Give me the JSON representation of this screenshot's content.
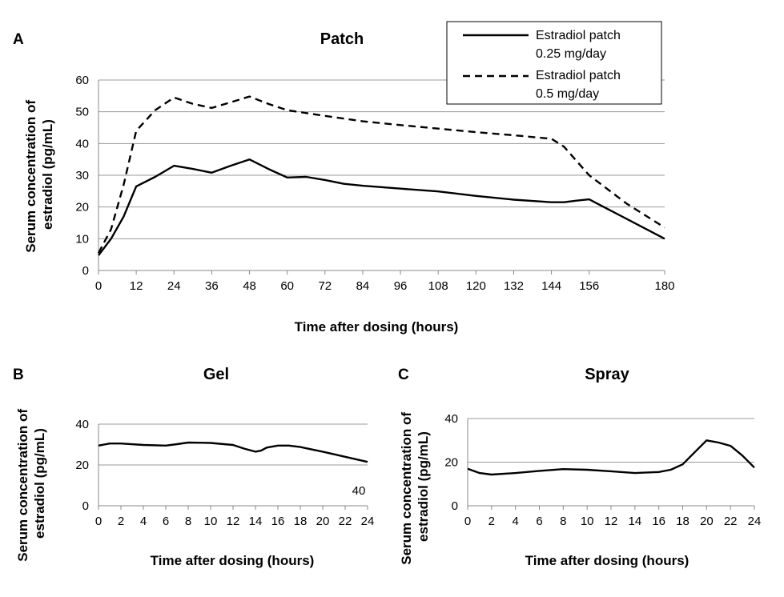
{
  "chart_data": [
    {
      "panel": "A",
      "type": "line",
      "title": "Patch",
      "xlabel": "Time after dosing (hours)",
      "ylabel": "Serum concentration of estradiol (pg/mL)",
      "xlim": [
        0,
        180
      ],
      "ylim": [
        0,
        60
      ],
      "x_ticks": [
        0,
        12,
        24,
        36,
        48,
        60,
        72,
        84,
        96,
        108,
        120,
        132,
        144,
        156,
        180
      ],
      "y_ticks": [
        0,
        10,
        20,
        30,
        40,
        50,
        60
      ],
      "grid": "horizontal",
      "legend": "top-right",
      "series": [
        {
          "name": "Estradiol patch 0.25 mg/day",
          "style": "solid",
          "x": [
            0,
            4,
            8,
            12,
            18,
            24,
            30,
            36,
            42,
            48,
            54,
            60,
            66,
            72,
            78,
            84,
            96,
            108,
            120,
            132,
            144,
            148,
            152,
            156,
            180
          ],
          "y": [
            4.8,
            10,
            17,
            26.5,
            29.5,
            33,
            32,
            30.8,
            33,
            35,
            32,
            29.3,
            29.5,
            28.5,
            27.3,
            26.7,
            25.8,
            24.9,
            23.5,
            22.3,
            21.5,
            21.5,
            22,
            22.4,
            10
          ]
        },
        {
          "name": "Estradiol patch 0.5 mg/day",
          "style": "dashed",
          "x": [
            0,
            4,
            8,
            12,
            18,
            24,
            30,
            36,
            42,
            48,
            54,
            60,
            72,
            84,
            96,
            108,
            120,
            132,
            144,
            148,
            156,
            168,
            180
          ],
          "y": [
            5.5,
            13,
            27,
            44,
            50.5,
            54.5,
            52.5,
            51.2,
            53,
            54.8,
            52.5,
            50.5,
            48.7,
            47,
            45.8,
            44.7,
            43.6,
            42.6,
            41.5,
            39,
            30,
            21,
            13.5
          ]
        }
      ]
    },
    {
      "panel": "B",
      "type": "line",
      "title": "Gel",
      "xlabel": "Time after dosing (hours)",
      "ylabel": "Serum concentration of estradiol (pg/mL)",
      "xlim": [
        0,
        24
      ],
      "ylim": [
        0,
        40
      ],
      "x_ticks": [
        0,
        2,
        4,
        6,
        8,
        10,
        12,
        14,
        16,
        18,
        20,
        22,
        24
      ],
      "y_ticks": [
        0,
        20,
        40
      ],
      "grid": "horizontal",
      "annotation": "40",
      "series": [
        {
          "style": "solid",
          "x": [
            0,
            1,
            2,
            4,
            6,
            7,
            8,
            10,
            12,
            13,
            14,
            14.5,
            15,
            16,
            17,
            18,
            20,
            22,
            24
          ],
          "y": [
            29.5,
            30.5,
            30.5,
            29.8,
            29.5,
            30.2,
            31,
            30.8,
            29.8,
            28,
            26.5,
            27,
            28.5,
            29.5,
            29.5,
            28.8,
            26.5,
            24,
            21.5
          ]
        }
      ]
    },
    {
      "panel": "C",
      "type": "line",
      "title": "Spray",
      "xlabel": "Time after dosing (hours)",
      "ylabel": "Serum concentration of estradiol (pg/mL)",
      "xlim": [
        0,
        24
      ],
      "ylim": [
        0,
        40
      ],
      "x_ticks": [
        0,
        2,
        4,
        6,
        8,
        10,
        12,
        14,
        16,
        18,
        20,
        22,
        24
      ],
      "y_ticks": [
        0,
        20,
        40
      ],
      "grid": "horizontal",
      "series": [
        {
          "style": "solid",
          "x": [
            0,
            1,
            2,
            4,
            6,
            8,
            10,
            12,
            14,
            16,
            17,
            18,
            19,
            20,
            21,
            22,
            23,
            24
          ],
          "y": [
            17,
            15,
            14.3,
            15,
            16,
            16.8,
            16.5,
            15.8,
            15,
            15.5,
            16.5,
            19,
            24.5,
            30,
            29,
            27.5,
            23,
            17.5
          ]
        }
      ]
    }
  ]
}
